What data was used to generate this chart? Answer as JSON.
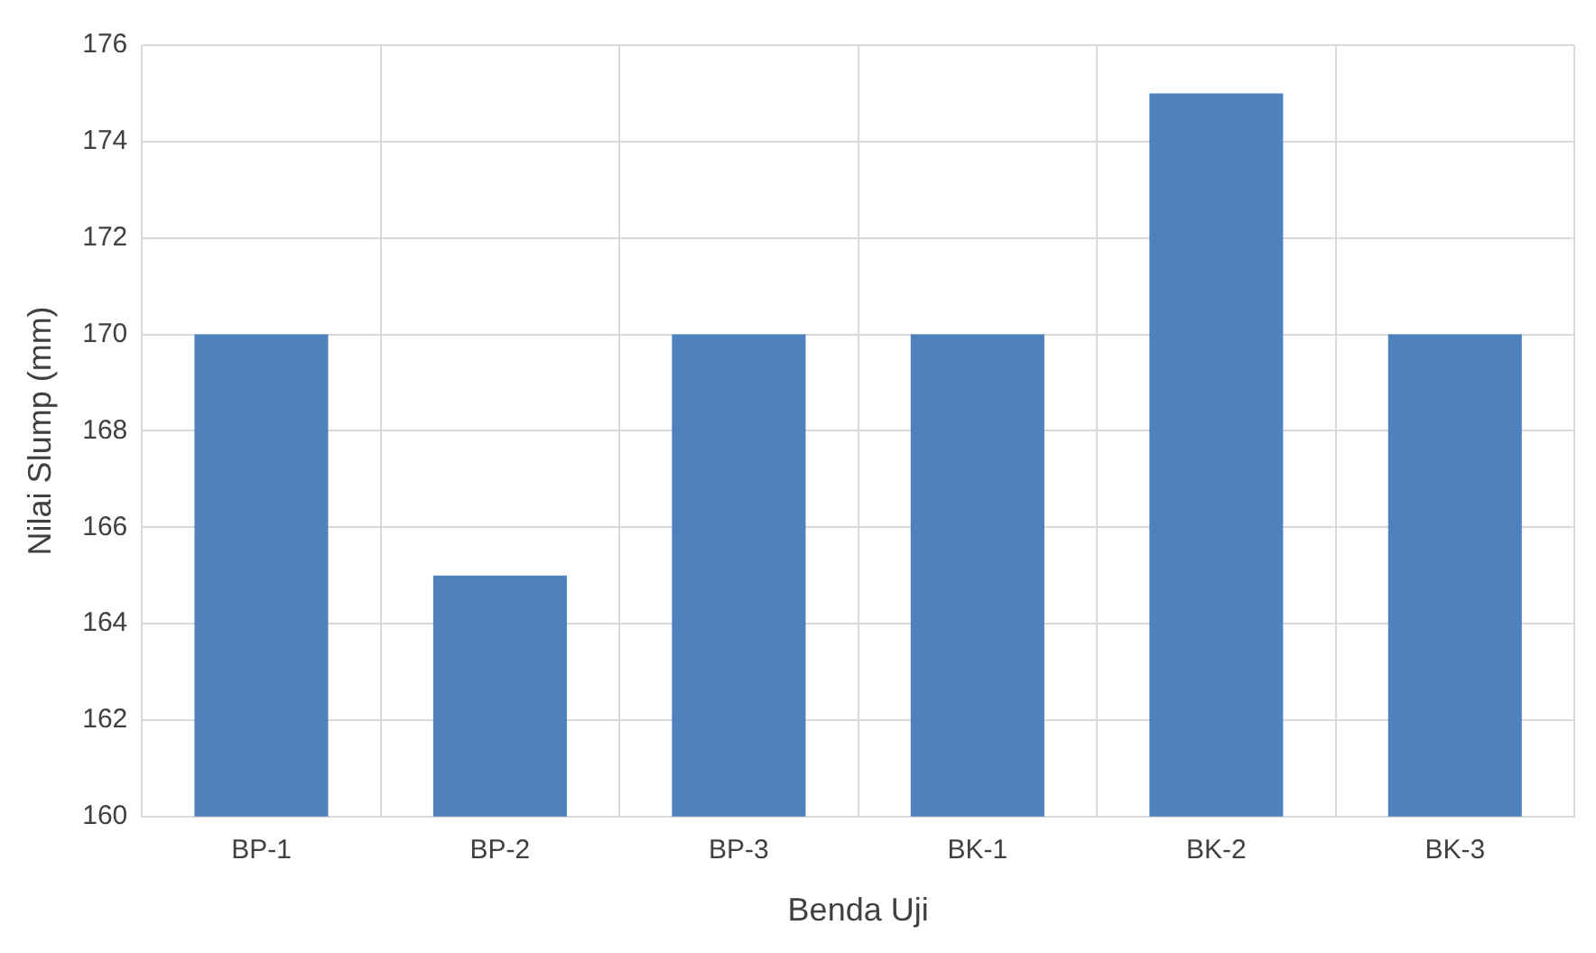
{
  "chart_data": {
    "type": "bar",
    "xlabel": "Benda Uji",
    "ylabel": "Nilai Slump (mm)",
    "categories": [
      "BP-1",
      "BP-2",
      "BP-3",
      "BK-1",
      "BK-2",
      "BK-3"
    ],
    "values": [
      170,
      165,
      170,
      170,
      175,
      170
    ],
    "color": "#4f81bd",
    "ylim": [
      160,
      176
    ],
    "yticks": [
      160,
      162,
      164,
      166,
      168,
      170,
      172,
      174,
      176
    ],
    "grid": true
  }
}
